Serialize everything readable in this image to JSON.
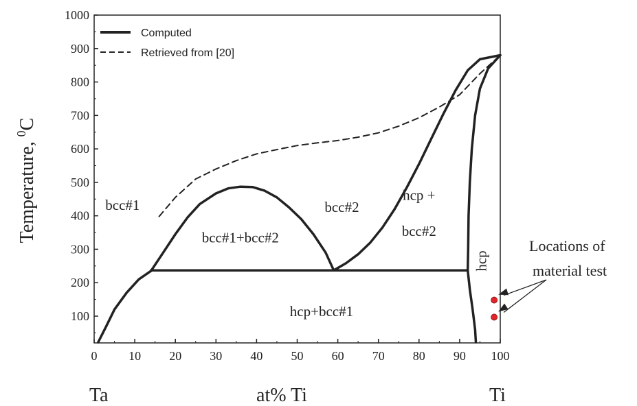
{
  "chart_data": {
    "type": "line",
    "xlabel": "at% Ti",
    "ylabel": "Temperature, ",
    "ylabel_sup": "0",
    "ylabel_unit": "C",
    "xlim": [
      0,
      100
    ],
    "ylim": [
      20,
      1000
    ],
    "x_ticks": [
      0,
      10,
      20,
      30,
      40,
      50,
      60,
      70,
      80,
      90,
      100
    ],
    "y_ticks": [
      100,
      200,
      300,
      400,
      500,
      600,
      700,
      800,
      900,
      1000
    ],
    "end_labels": {
      "left": "Ta",
      "right": "Ti"
    },
    "legend": {
      "position": "top-left",
      "entries": [
        {
          "label": "Computed",
          "style": "solid"
        },
        {
          "label": "Retrieved from [20]",
          "style": "dashed"
        }
      ]
    },
    "series": [
      {
        "label": "Computed",
        "style": "solid",
        "curves": [
          {
            "part": "bcc#1 solvus",
            "points": [
              [
                1,
                22
              ],
              [
                3,
                70
              ],
              [
                5,
                120
              ],
              [
                8,
                170
              ],
              [
                11,
                210
              ],
              [
                14,
                235
              ]
            ]
          },
          {
            "part": "miscibility gap",
            "points": [
              [
                14,
                235
              ],
              [
                17,
                290
              ],
              [
                20,
                345
              ],
              [
                23,
                395
              ],
              [
                26,
                435
              ],
              [
                30,
                467
              ],
              [
                33,
                482
              ],
              [
                36,
                487
              ],
              [
                39,
                486
              ],
              [
                42,
                475
              ],
              [
                45,
                455
              ],
              [
                48,
                425
              ],
              [
                51,
                390
              ],
              [
                54,
                345
              ],
              [
                57,
                290
              ],
              [
                59,
                237
              ]
            ]
          },
          {
            "part": "bcc#2 / hcp+bcc#2",
            "points": [
              [
                59,
                237
              ],
              [
                62,
                258
              ],
              [
                65,
                285
              ],
              [
                68,
                320
              ],
              [
                71,
                365
              ],
              [
                74,
                420
              ],
              [
                77,
                485
              ],
              [
                80,
                555
              ],
              [
                83,
                630
              ],
              [
                86,
                705
              ],
              [
                89,
                775
              ],
              [
                92,
                835
              ],
              [
                95,
                868
              ],
              [
                100,
                880
              ]
            ]
          },
          {
            "part": "hcp / hcp+bcc#2",
            "points": [
              [
                100,
                880
              ],
              [
                97,
                840
              ],
              [
                95,
                780
              ],
              [
                93.8,
                700
              ],
              [
                93,
                600
              ],
              [
                92.5,
                500
              ],
              [
                92.2,
                400
              ],
              [
                92.1,
                300
              ],
              [
                92,
                237
              ]
            ]
          },
          {
            "part": "hcp / hcp+bcc#1",
            "points": [
              [
                92,
                237
              ],
              [
                92.5,
                180
              ],
              [
                93.2,
                120
              ],
              [
                93.8,
                60
              ],
              [
                94,
                22
              ]
            ]
          },
          {
            "part": "monotectoid isotherm",
            "points": [
              [
                14,
                237
              ],
              [
                92,
                237
              ]
            ]
          }
        ]
      },
      {
        "label": "Retrieved from [20]",
        "style": "dashed",
        "curves": [
          {
            "part": "bcc boundary",
            "points": [
              [
                16,
                398
              ],
              [
                20,
                455
              ],
              [
                25,
                510
              ],
              [
                30,
                540
              ],
              [
                35,
                565
              ],
              [
                40,
                585
              ],
              [
                45,
                598
              ],
              [
                50,
                610
              ],
              [
                55,
                618
              ],
              [
                60,
                625
              ],
              [
                65,
                635
              ],
              [
                70,
                648
              ],
              [
                75,
                668
              ],
              [
                80,
                693
              ],
              [
                85,
                725
              ],
              [
                90,
                762
              ],
              [
                95,
                825
              ],
              [
                100,
                880
              ]
            ]
          }
        ]
      }
    ],
    "test_points": [
      {
        "x": 98.5,
        "y": 148
      },
      {
        "x": 98.5,
        "y": 97
      }
    ],
    "phase_labels": [
      {
        "text": "bcc#1",
        "x": 7,
        "y": 418
      },
      {
        "text": "bcc#1+bcc#2",
        "x": 36,
        "y": 320
      },
      {
        "text": "bcc#2",
        "x": 61,
        "y": 412
      },
      {
        "text": "hcp +",
        "x": 80,
        "y": 447
      },
      {
        "text": "bcc#2",
        "x": 80,
        "y": 340
      },
      {
        "text": "hcp+bcc#1",
        "x": 56,
        "y": 100
      },
      {
        "text": "hcp",
        "x": 96.5,
        "y": 265,
        "rotate": true
      }
    ],
    "annotations": [
      {
        "text": "Locations of"
      },
      {
        "text": "material test"
      }
    ]
  }
}
